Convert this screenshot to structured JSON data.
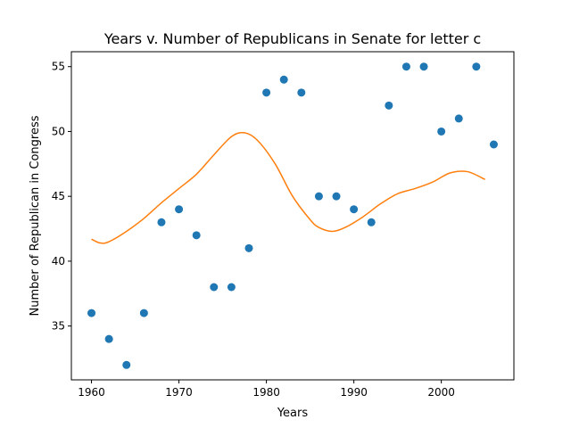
{
  "chart_data": {
    "type": "scatter",
    "title": "Years v. Number of Republicans in Senate for letter c",
    "xlabel": "Years",
    "ylabel": "Number of Republican in Congress",
    "xlim": [
      1957.7,
      2008.3
    ],
    "ylim": [
      30.85,
      56.15
    ],
    "xticks": [
      1960,
      1970,
      1980,
      1990,
      2000
    ],
    "yticks": [
      35,
      40,
      45,
      50,
      55
    ],
    "grid": false,
    "legend": "none",
    "colors": {
      "points": "#1f77b4",
      "fit": "#ff7f0e"
    },
    "series": [
      {
        "type": "scatter",
        "x": [
          1960,
          1962,
          1964,
          1966,
          1968,
          1970,
          1972,
          1974,
          1976,
          1978,
          1980,
          1982,
          1984,
          1986,
          1988,
          1990,
          1992,
          1994,
          1996,
          1998,
          2000,
          2002,
          2004,
          2006
        ],
        "y": [
          36,
          34,
          32,
          36,
          43,
          44,
          42,
          38,
          38,
          41,
          53,
          54,
          53,
          45,
          45,
          44,
          43,
          52,
          55,
          55,
          50,
          51,
          55,
          49
        ]
      },
      {
        "type": "line",
        "x": [
          1960,
          1961,
          1962,
          1964,
          1966,
          1968,
          1970,
          1972,
          1974,
          1976,
          1977.5,
          1979,
          1981,
          1983,
          1985,
          1986,
          1987.5,
          1989,
          1991,
          1993,
          1995,
          1997,
          1999,
          2001,
          2003,
          2005
        ],
        "y": [
          41.7,
          41.4,
          41.5,
          42.3,
          43.3,
          44.5,
          45.6,
          46.7,
          48.2,
          49.6,
          49.9,
          49.3,
          47.5,
          45.0,
          43.2,
          42.6,
          42.3,
          42.6,
          43.4,
          44.4,
          45.2,
          45.6,
          46.1,
          46.8,
          46.9,
          46.3
        ]
      }
    ]
  }
}
